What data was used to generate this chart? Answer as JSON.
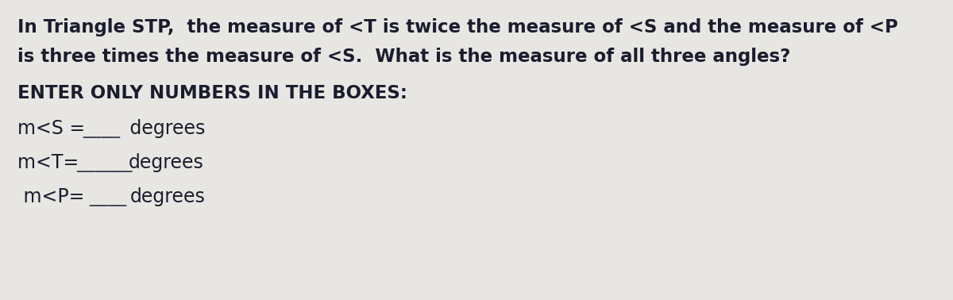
{
  "background_color": "#e8e6e2",
  "text_color": "#1a1d2e",
  "line1": "In Triangle STP,  the measure of <T is twice the measure of <S and the measure of <P",
  "line2": "is three times the measure of <S.  What is the measure of all three angles?",
  "instruction": "ENTER ONLY NUMBERS IN THE BOXES:",
  "s_label": "m<S = ",
  "s_blank": "____",
  "s_suffix": " degrees",
  "t_label": "m<T= ",
  "t_blank": "______",
  "t_suffix": "degrees",
  "p_label": " m<P= ",
  "p_blank": "____",
  "p_suffix": "degrees",
  "body_fontsize": 16.5,
  "instruction_fontsize": 16.5,
  "answer_fontsize": 17,
  "blank_color": "#444455"
}
